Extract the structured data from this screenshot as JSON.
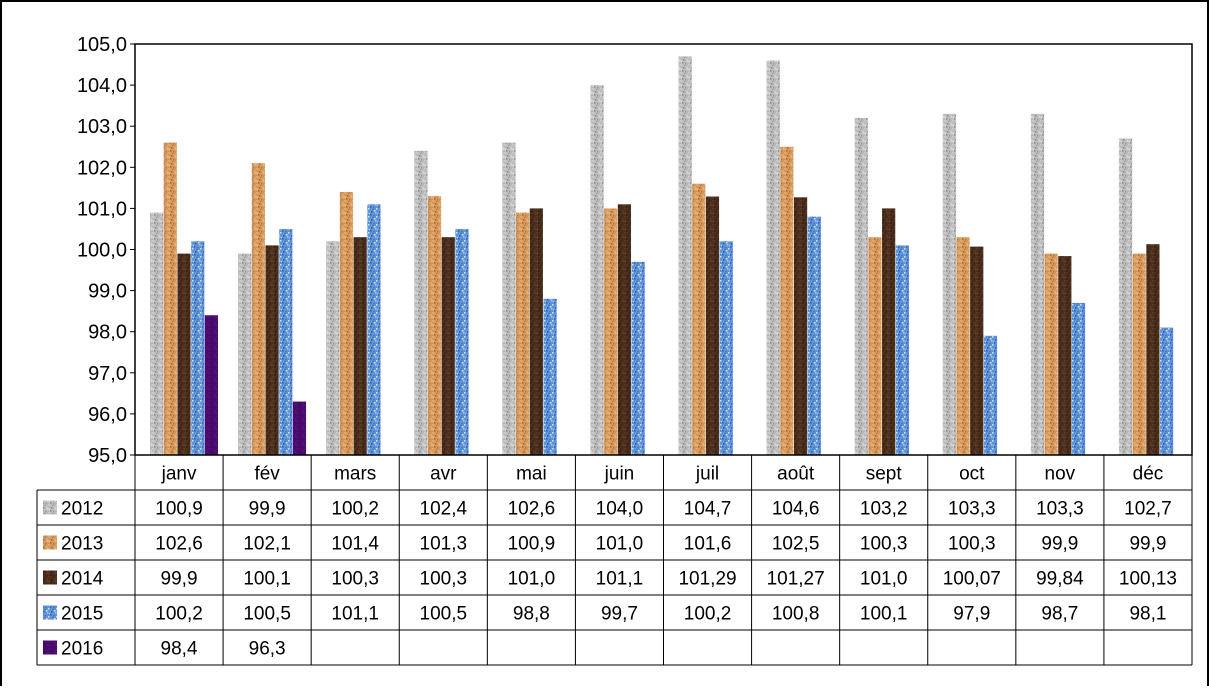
{
  "chart_data": {
    "type": "bar",
    "categories": [
      "janv",
      "fév",
      "mars",
      "avr",
      "mai",
      "juin",
      "juil",
      "août",
      "sept",
      "oct",
      "nov",
      "déc"
    ],
    "series": [
      {
        "name": "2012",
        "values": [
          100.9,
          99.9,
          100.2,
          102.4,
          102.6,
          104.0,
          104.7,
          104.6,
          103.2,
          103.3,
          103.3,
          102.7
        ],
        "labels": [
          "100,9",
          "99,9",
          "100,2",
          "102,4",
          "102,6",
          "104,0",
          "104,7",
          "104,6",
          "103,2",
          "103,3",
          "103,3",
          "102,7"
        ],
        "color": "#b8b8b8"
      },
      {
        "name": "2013",
        "values": [
          102.6,
          102.1,
          101.4,
          101.3,
          100.9,
          101.0,
          101.6,
          102.5,
          100.3,
          100.3,
          99.9,
          99.9
        ],
        "labels": [
          "102,6",
          "102,1",
          "101,4",
          "101,3",
          "100,9",
          "101,0",
          "101,6",
          "102,5",
          "100,3",
          "100,3",
          "99,9",
          "99,9"
        ],
        "color": "#d4904f"
      },
      {
        "name": "2014",
        "values": [
          99.9,
          100.1,
          100.3,
          100.3,
          101.0,
          101.1,
          101.29,
          101.27,
          101.0,
          100.07,
          99.84,
          100.13
        ],
        "labels": [
          "99,9",
          "100,1",
          "100,3",
          "100,3",
          "101,0",
          "101,1",
          "101,29",
          "101,27",
          "101,0",
          "100,07",
          "99,84",
          "100,13"
        ],
        "color": "#4a2e1c"
      },
      {
        "name": "2015",
        "values": [
          100.2,
          100.5,
          101.1,
          100.5,
          98.8,
          99.7,
          100.2,
          100.8,
          100.1,
          97.9,
          98.7,
          98.1
        ],
        "labels": [
          "100,2",
          "100,5",
          "101,1",
          "100,5",
          "98,8",
          "99,7",
          "100,2",
          "100,8",
          "100,1",
          "97,9",
          "98,7",
          "98,1"
        ],
        "color": "#5b8fd6"
      },
      {
        "name": "2016",
        "values": [
          98.4,
          96.3,
          null,
          null,
          null,
          null,
          null,
          null,
          null,
          null,
          null,
          null
        ],
        "labels": [
          "98,4",
          "96,3",
          "",
          "",
          "",
          "",
          "",
          "",
          "",
          "",
          "",
          ""
        ],
        "color": "#4b0a6e"
      }
    ],
    "y_tick_labels": [
      "95,0",
      "96,0",
      "97,0",
      "98,0",
      "99,0",
      "100,0",
      "101,0",
      "102,0",
      "103,0",
      "104,0",
      "105,0"
    ],
    "ylim": [
      95,
      105
    ],
    "grid": false,
    "legend": "data-table",
    "title": "",
    "xlabel": "",
    "ylabel": ""
  }
}
